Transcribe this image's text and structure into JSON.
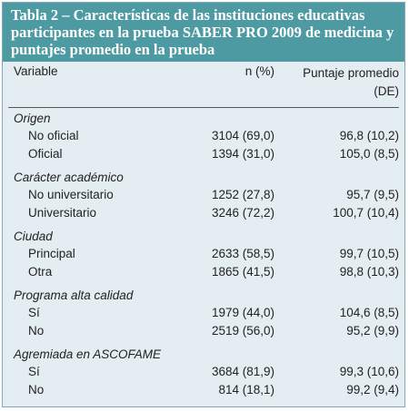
{
  "table": {
    "title": "Tabla 2 – Características de las instituciones educativas participantes en la prueba SABER PRO 2009 de medicina y puntajes promedio en la prueba",
    "columns": [
      "Variable",
      "n (%)",
      "Puntaje promedio (DE)"
    ],
    "groups": [
      {
        "label": "Origen",
        "rows": [
          [
            "No oficial",
            "3104 (69,0)",
            "96,8 (10,2)"
          ],
          [
            "Oficial",
            "1394 (31,0)",
            "105,0 (8,5)"
          ]
        ]
      },
      {
        "label": "Carácter académico",
        "rows": [
          [
            "No universitario",
            "1252 (27,8)",
            "95,7 (9,5)"
          ],
          [
            "Universitario",
            "3246 (72,2)",
            "100,7 (10,4)"
          ]
        ]
      },
      {
        "label": "Ciudad",
        "rows": [
          [
            "Principal",
            "2633 (58,5)",
            "99,7 (10,5)"
          ],
          [
            "Otra",
            "1865 (41,5)",
            "98,8 (10,3)"
          ]
        ]
      },
      {
        "label": "Programa alta calidad",
        "rows": [
          [
            "Sí",
            "1979 (44,0)",
            "104,6 (8,5)"
          ],
          [
            "No",
            "2519 (56,0)",
            "95,2 (9,9)"
          ]
        ]
      },
      {
        "label": "Agremiada en ASCOFAME",
        "rows": [
          [
            "Sí",
            "3684 (81,9)",
            "99,3 (10,6)"
          ],
          [
            "No",
            "814 (18,1)",
            "99,2 (9,4)"
          ]
        ]
      }
    ]
  }
}
